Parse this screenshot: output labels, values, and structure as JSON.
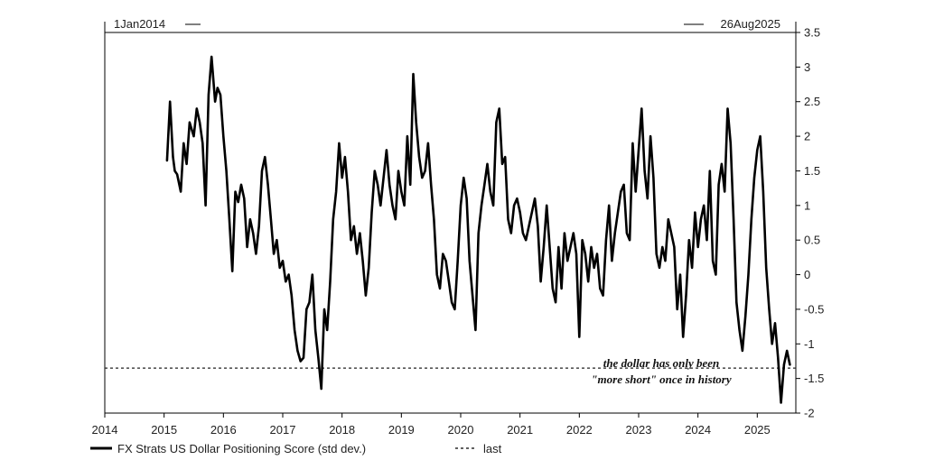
{
  "chart_data": {
    "type": "line",
    "title": "",
    "xlabel": "",
    "ylabel": "",
    "range_start": "1Jan2014",
    "range_end": "26Aug2025",
    "xlim": [
      2014.0,
      2025.65
    ],
    "ylim": [
      -2,
      3.5
    ],
    "x_ticks": [
      "2014",
      "2015",
      "2016",
      "2017",
      "2018",
      "2019",
      "2020",
      "2021",
      "2022",
      "2023",
      "2024",
      "2025"
    ],
    "y_ticks": [
      "3.5",
      "3",
      "2.5",
      "2",
      "1.5",
      "1",
      "0.5",
      "0",
      "-0.5",
      "-1",
      "-1.5",
      "-2"
    ],
    "grid": false,
    "legend_position": "bottom-left",
    "annotation": [
      "the dollar has only been",
      "\"more short\"  once in history"
    ],
    "series": [
      {
        "name": "FX Strats US Dollar Positioning Score (std dev.)",
        "style": "solid",
        "color": "#000000",
        "x": [
          2015.05,
          2015.1,
          2015.15,
          2015.18,
          2015.22,
          2015.28,
          2015.33,
          2015.38,
          2015.43,
          2015.5,
          2015.55,
          2015.6,
          2015.65,
          2015.7,
          2015.75,
          2015.8,
          2015.86,
          2015.9,
          2015.95,
          2016.0,
          2016.05,
          2016.1,
          2016.15,
          2016.2,
          2016.25,
          2016.3,
          2016.35,
          2016.4,
          2016.45,
          2016.5,
          2016.55,
          2016.6,
          2016.65,
          2016.7,
          2016.75,
          2016.8,
          2016.85,
          2016.9,
          2016.95,
          2017.0,
          2017.05,
          2017.1,
          2017.15,
          2017.2,
          2017.25,
          2017.3,
          2017.35,
          2017.4,
          2017.45,
          2017.5,
          2017.55,
          2017.6,
          2017.65,
          2017.7,
          2017.75,
          2017.8,
          2017.85,
          2017.9,
          2017.95,
          2018.0,
          2018.05,
          2018.1,
          2018.15,
          2018.2,
          2018.25,
          2018.3,
          2018.35,
          2018.4,
          2018.45,
          2018.5,
          2018.55,
          2018.6,
          2018.65,
          2018.7,
          2018.75,
          2018.8,
          2018.85,
          2018.9,
          2018.95,
          2019.0,
          2019.05,
          2019.1,
          2019.15,
          2019.2,
          2019.25,
          2019.3,
          2019.35,
          2019.4,
          2019.45,
          2019.5,
          2019.55,
          2019.6,
          2019.65,
          2019.7,
          2019.75,
          2019.8,
          2019.85,
          2019.9,
          2019.95,
          2020.0,
          2020.05,
          2020.1,
          2020.15,
          2020.2,
          2020.25,
          2020.3,
          2020.35,
          2020.4,
          2020.45,
          2020.5,
          2020.55,
          2020.6,
          2020.65,
          2020.7,
          2020.75,
          2020.8,
          2020.85,
          2020.9,
          2020.95,
          2021.0,
          2021.05,
          2021.1,
          2021.15,
          2021.2,
          2021.25,
          2021.3,
          2021.35,
          2021.4,
          2021.45,
          2021.5,
          2021.55,
          2021.6,
          2021.65,
          2021.7,
          2021.75,
          2021.8,
          2021.85,
          2021.9,
          2021.95,
          2022.0,
          2022.05,
          2022.1,
          2022.15,
          2022.2,
          2022.25,
          2022.3,
          2022.35,
          2022.4,
          2022.45,
          2022.5,
          2022.55,
          2022.6,
          2022.65,
          2022.7,
          2022.75,
          2022.8,
          2022.85,
          2022.9,
          2022.95,
          2023.0,
          2023.05,
          2023.1,
          2023.15,
          2023.2,
          2023.25,
          2023.3,
          2023.35,
          2023.4,
          2023.45,
          2023.5,
          2023.55,
          2023.6,
          2023.65,
          2023.7,
          2023.75,
          2023.8,
          2023.85,
          2023.9,
          2023.95,
          2024.0,
          2024.05,
          2024.1,
          2024.15,
          2024.2,
          2024.25,
          2024.3,
          2024.35,
          2024.4,
          2024.45,
          2024.5,
          2024.55,
          2024.6,
          2024.65,
          2024.7,
          2024.75,
          2024.8,
          2024.85,
          2024.9,
          2024.95,
          2025.0,
          2025.05,
          2025.1,
          2025.15,
          2025.2,
          2025.25,
          2025.3,
          2025.35,
          2025.4,
          2025.45,
          2025.5,
          2025.55
        ],
        "values": [
          1.65,
          2.5,
          1.7,
          1.5,
          1.45,
          1.2,
          1.9,
          1.6,
          2.2,
          2.0,
          2.4,
          2.2,
          1.9,
          1.0,
          2.6,
          3.15,
          2.5,
          2.7,
          2.6,
          2.0,
          1.5,
          0.8,
          0.05,
          1.2,
          1.05,
          1.3,
          1.1,
          0.4,
          0.8,
          0.6,
          0.3,
          0.7,
          1.5,
          1.7,
          1.3,
          0.8,
          0.3,
          0.5,
          0.1,
          0.2,
          -0.1,
          0.0,
          -0.3,
          -0.8,
          -1.1,
          -1.25,
          -1.2,
          -0.5,
          -0.4,
          0.0,
          -0.8,
          -1.2,
          -1.65,
          -0.5,
          -0.8,
          -0.1,
          0.8,
          1.2,
          1.9,
          1.4,
          1.7,
          1.2,
          0.5,
          0.7,
          0.3,
          0.6,
          0.2,
          -0.3,
          0.1,
          0.9,
          1.5,
          1.3,
          1.0,
          1.4,
          1.8,
          1.3,
          1.0,
          0.8,
          1.5,
          1.2,
          1.0,
          2.0,
          1.3,
          2.9,
          2.2,
          1.7,
          1.4,
          1.5,
          1.9,
          1.3,
          0.8,
          0.0,
          -0.2,
          0.3,
          0.2,
          -0.1,
          -0.4,
          -0.5,
          0.2,
          1.0,
          1.4,
          1.1,
          0.2,
          -0.3,
          -0.8,
          0.6,
          1.0,
          1.3,
          1.6,
          1.2,
          1.0,
          2.2,
          2.4,
          1.6,
          1.7,
          0.8,
          0.6,
          1.0,
          1.1,
          0.9,
          0.6,
          0.5,
          0.7,
          0.9,
          1.1,
          0.7,
          -0.1,
          0.4,
          1.0,
          0.4,
          -0.2,
          -0.4,
          0.4,
          -0.2,
          0.6,
          0.2,
          0.4,
          0.6,
          0.3,
          -0.9,
          0.5,
          0.3,
          -0.1,
          0.4,
          0.1,
          0.3,
          -0.2,
          -0.3,
          0.5,
          1.0,
          0.2,
          0.6,
          0.9,
          1.2,
          1.3,
          0.6,
          0.5,
          1.9,
          1.2,
          1.8,
          2.4,
          1.5,
          1.1,
          2.0,
          1.4,
          0.3,
          0.1,
          0.4,
          0.2,
          0.8,
          0.6,
          0.4,
          -0.5,
          0.0,
          -0.9,
          -0.3,
          0.5,
          0.1,
          0.9,
          0.4,
          0.8,
          1.0,
          0.5,
          1.5,
          0.2,
          0.0,
          1.3,
          1.6,
          1.2,
          2.4,
          1.9,
          0.8,
          -0.4,
          -0.8,
          -1.1,
          -0.6,
          0.0,
          0.8,
          1.4,
          1.8,
          2.0,
          1.2,
          0.1,
          -0.5,
          -1.0,
          -0.7,
          -1.2,
          -1.85,
          -1.3,
          -1.1,
          -1.3
        ]
      },
      {
        "name": "last",
        "style": "dashed",
        "color": "#000000",
        "value": -1.35
      }
    ]
  }
}
